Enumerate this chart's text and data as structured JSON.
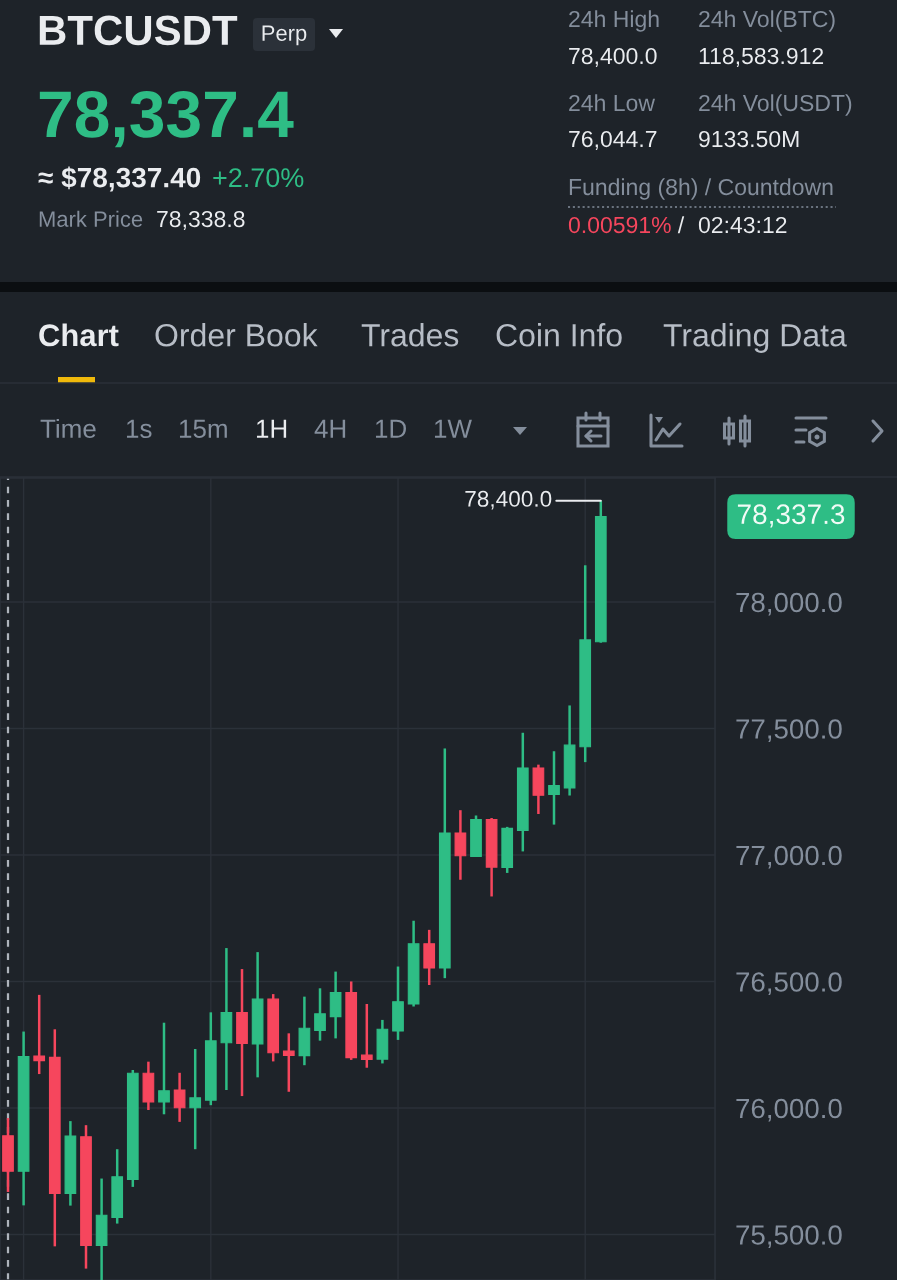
{
  "chart_data": {
    "type": "candlestick",
    "title": "BTCUSDT",
    "categories": [
      null,
      null,
      null,
      null,
      null,
      null,
      null,
      null,
      null,
      null,
      null,
      null,
      null,
      null,
      null,
      null,
      null,
      null,
      null,
      null,
      null,
      null,
      null,
      null,
      null,
      null,
      null,
      null,
      null,
      null,
      null,
      null,
      null,
      null,
      null,
      null,
      null,
      null,
      null
    ],
    "ohlc": [
      [
        75890,
        75960,
        75668,
        75750
      ],
      [
        75750,
        76302,
        75615,
        76203
      ],
      [
        76205,
        76447,
        76134,
        76187
      ],
      [
        76200,
        76311,
        75453,
        75662
      ],
      [
        75662,
        75948,
        75614,
        75889
      ],
      [
        75886,
        75932,
        75365,
        75457
      ],
      [
        75457,
        75721,
        75320,
        75576
      ],
      [
        75567,
        75837,
        75543,
        75728
      ],
      [
        75717,
        76150,
        75688,
        76137
      ],
      [
        76137,
        76183,
        75992,
        76024
      ],
      [
        76024,
        76337,
        75975,
        76068
      ],
      [
        76071,
        76139,
        75945,
        76001
      ],
      [
        76001,
        76233,
        75837,
        76040
      ],
      [
        76031,
        76378,
        76011,
        76265
      ],
      [
        76258,
        76632,
        76071,
        76377
      ],
      [
        76377,
        76549,
        76047,
        76255
      ],
      [
        76253,
        76616,
        76121,
        76430
      ],
      [
        76430,
        76450,
        76184,
        76218
      ],
      [
        76225,
        76295,
        76064,
        76208
      ],
      [
        76207,
        76440,
        76169,
        76315
      ],
      [
        76306,
        76473,
        76266,
        76372
      ],
      [
        76361,
        76539,
        76275,
        76456
      ],
      [
        76456,
        76500,
        76190,
        76199
      ],
      [
        76209,
        76411,
        76159,
        76192
      ],
      [
        76193,
        76348,
        76176,
        76311
      ],
      [
        76304,
        76559,
        76269,
        76420
      ],
      [
        76411,
        76740,
        76401,
        76649
      ],
      [
        76649,
        76704,
        76486,
        76553
      ],
      [
        76553,
        77421,
        76513,
        77087
      ],
      [
        77087,
        77177,
        76902,
        76997
      ],
      [
        76994,
        77156,
        76992,
        77140
      ],
      [
        77140,
        77146,
        76836,
        76952
      ],
      [
        76951,
        77111,
        76929,
        77105
      ],
      [
        77097,
        77483,
        77014,
        77344
      ],
      [
        77344,
        77357,
        77162,
        77236
      ],
      [
        77239,
        77410,
        77120,
        77274
      ],
      [
        77265,
        77591,
        77235,
        77434
      ],
      [
        77428,
        78145,
        77367,
        77850
      ],
      [
        77843,
        78400,
        77839,
        78337.3
      ]
    ],
    "colors": [
      "#f6465d",
      "#2ebd85",
      "#f6465d",
      "#f6465d",
      "#2ebd85",
      "#f6465d",
      "#2ebd85",
      "#2ebd85",
      "#2ebd85",
      "#f6465d",
      "#2ebd85",
      "#f6465d",
      "#2ebd85",
      "#2ebd85",
      "#2ebd85",
      "#f6465d",
      "#2ebd85",
      "#f6465d",
      "#f6465d",
      "#2ebd85",
      "#2ebd85",
      "#2ebd85",
      "#f6465d",
      "#f6465d",
      "#2ebd85",
      "#2ebd85",
      "#2ebd85",
      "#f6465d",
      "#2ebd85",
      "#f6465d",
      "#2ebd85",
      "#f6465d",
      "#2ebd85",
      "#2ebd85",
      "#f6465d",
      "#2ebd85",
      "#2ebd85",
      "#2ebd85",
      "#2ebd85"
    ],
    "ylim": [
      75320,
      78490
    ],
    "yticks": [
      {
        "value": 75500,
        "label": "75,500.0"
      },
      {
        "value": 76000,
        "label": "76,000.0"
      },
      {
        "value": 76500,
        "label": "76,500.0"
      },
      {
        "value": 77000,
        "label": "77,000.0"
      },
      {
        "value": 77500,
        "label": "77,500.0"
      },
      {
        "value": 78000,
        "label": "78,000.0"
      }
    ],
    "grid": true,
    "tick_labels": "y",
    "annotations": [
      "Perp",
      "78,337.4",
      "≈ $78,337.40",
      "+2.70%",
      "Mark Price",
      "78,338.8",
      "24h High",
      "78,400.0",
      "24h Vol(BTC)",
      "118,583.912",
      "24h Low",
      "76,044.7",
      "24h Vol(USDT)",
      "9133.50M",
      "Funding (8h) / Countdown",
      "0.00591%",
      "/",
      "02:43:12",
      "Chart",
      "Order Book",
      "Trades",
      "Coin Info",
      "Trading Data",
      "Time",
      "1s",
      "15m",
      "1H",
      "4H",
      "1D",
      "1W",
      "78,400.0",
      "78,337.3"
    ]
  }
}
